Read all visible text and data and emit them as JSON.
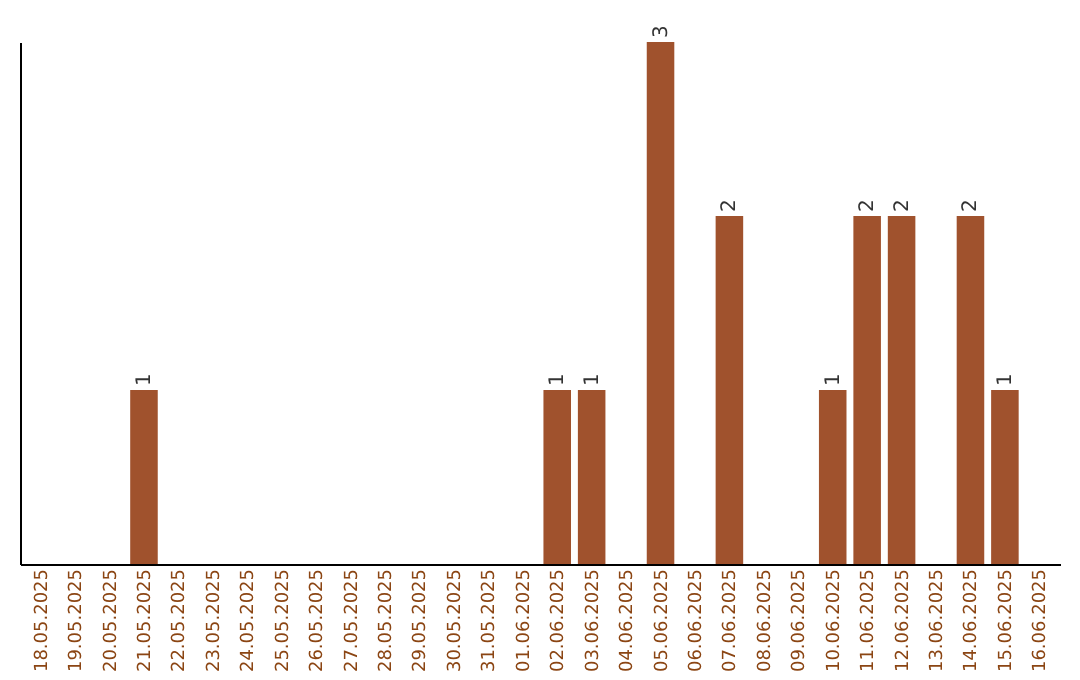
{
  "chart_data": {
    "type": "bar",
    "categories": [
      "18.05.2025",
      "19.05.2025",
      "20.05.2025",
      "21.05.2025",
      "22.05.2025",
      "23.05.2025",
      "24.05.2025",
      "25.05.2025",
      "26.05.2025",
      "27.05.2025",
      "28.05.2025",
      "29.05.2025",
      "30.05.2025",
      "31.05.2025",
      "01.06.2025",
      "02.06.2025",
      "03.06.2025",
      "04.06.2025",
      "05.06.2025",
      "06.06.2025",
      "07.06.2025",
      "08.06.2025",
      "09.06.2025",
      "10.06.2025",
      "11.06.2025",
      "12.06.2025",
      "13.06.2025",
      "14.06.2025",
      "15.06.2025",
      "16.06.2025"
    ],
    "values": [
      0,
      0,
      0,
      1,
      0,
      0,
      0,
      0,
      0,
      0,
      0,
      0,
      0,
      0,
      0,
      1,
      1,
      0,
      3,
      0,
      2,
      0,
      0,
      1,
      2,
      2,
      0,
      2,
      1,
      0
    ],
    "value_labels": [
      null,
      null,
      null,
      "1",
      null,
      null,
      null,
      null,
      null,
      null,
      null,
      null,
      null,
      null,
      null,
      "1",
      "1",
      null,
      "3",
      null,
      "2",
      null,
      null,
      "1",
      "2",
      "2",
      null,
      "2",
      "1",
      null
    ],
    "color": "#a0522d",
    "ylim": [
      0,
      3
    ],
    "tick_labels": "x",
    "grid": false
  }
}
